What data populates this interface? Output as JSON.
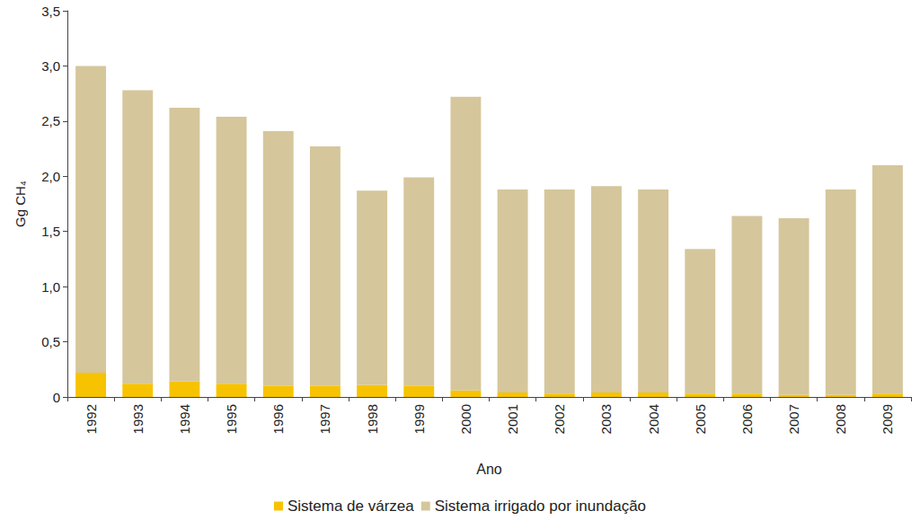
{
  "chart_data": {
    "type": "bar",
    "stacked": true,
    "x_label": "Ano",
    "y_label": "Gg CH₄",
    "categories": [
      "1992",
      "1993",
      "1994",
      "1995",
      "1996",
      "1997",
      "1998",
      "1999",
      "2000",
      "2001",
      "2002",
      "2003",
      "2004",
      "2005",
      "2006",
      "2007",
      "2008",
      "2009"
    ],
    "series": [
      {
        "name": "Sistema de várzea",
        "color": "#f7c300",
        "values": [
          0.22,
          0.12,
          0.14,
          0.12,
          0.1,
          0.1,
          0.11,
          0.1,
          0.06,
          0.04,
          0.03,
          0.04,
          0.04,
          0.03,
          0.03,
          0.02,
          0.02,
          0.03
        ]
      },
      {
        "name": "Sistema irrigado por inundação",
        "color": "#d5c69c",
        "values": [
          2.78,
          2.66,
          2.48,
          2.42,
          2.31,
          2.17,
          1.76,
          1.89,
          2.66,
          1.84,
          1.85,
          1.87,
          1.84,
          1.31,
          1.61,
          1.6,
          1.86,
          2.07
        ]
      }
    ],
    "ylim": [
      0,
      3.5
    ],
    "yticks": [
      0,
      {
        "value": 0.5,
        "label": "0,5"
      },
      {
        "value": 1,
        "label": "1,0"
      },
      {
        "value": 1.5,
        "label": "1,5"
      },
      {
        "value": 2,
        "label": "2,0"
      },
      {
        "value": 2.5,
        "label": "2,5"
      },
      {
        "value": 3,
        "label": "3,0"
      },
      {
        "value": 3.5,
        "label": "3,5"
      }
    ],
    "grid": false,
    "legend": "bottom"
  }
}
